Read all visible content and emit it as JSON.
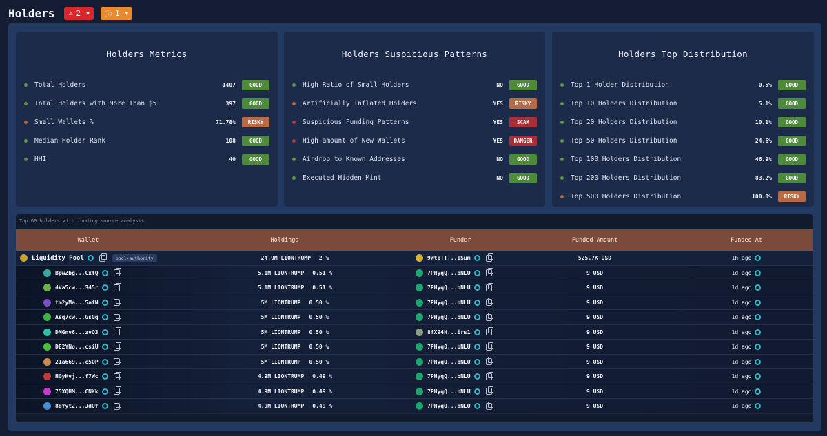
{
  "header": {
    "title": "Holders",
    "alerts": [
      {
        "count": "2",
        "icon": "warning-triangle-icon",
        "color": "#d7262c"
      },
      {
        "count": "1",
        "icon": "info-circle-icon",
        "color": "#e98a2f"
      }
    ]
  },
  "cards": [
    {
      "title": "Holders Metrics",
      "rows": [
        {
          "label": "Total Holders",
          "value": "1407",
          "status": "GOOD"
        },
        {
          "label": "Total Holders with More Than $5",
          "value": "397",
          "status": "GOOD"
        },
        {
          "label": "Small Wallets %",
          "value": "71.78%",
          "status": "RISKY"
        },
        {
          "label": "Median Holder Rank",
          "value": "108",
          "status": "GOOD"
        },
        {
          "label": "HHI",
          "value": "40",
          "status": "GOOD"
        }
      ]
    },
    {
      "title": "Holders Suspicious Patterns",
      "rows": [
        {
          "label": "High Ratio of Small Holders",
          "value": "NO",
          "status": "GOOD"
        },
        {
          "label": "Artificially Inflated Holders",
          "value": "YES",
          "status": "RISKY"
        },
        {
          "label": "Suspicious Funding Patterns",
          "value": "YES",
          "status": "SCAM"
        },
        {
          "label": "High amount of New Wallets",
          "value": "YES",
          "status": "DANGER"
        },
        {
          "label": "Airdrop to Known Addresses",
          "value": "NO",
          "status": "GOOD"
        },
        {
          "label": "Executed Hidden Mint",
          "value": "NO",
          "status": "GOOD"
        }
      ]
    },
    {
      "title": "Holders Top Distribution",
      "rows": [
        {
          "label": "Top 1 Holder Distribution",
          "value": "0.5%",
          "status": "GOOD"
        },
        {
          "label": "Top 10 Holders Distribution",
          "value": "5.1%",
          "status": "GOOD"
        },
        {
          "label": "Top 20 Holders Distribution",
          "value": "10.1%",
          "status": "GOOD"
        },
        {
          "label": "Top 50 Holders Distribution",
          "value": "24.6%",
          "status": "GOOD"
        },
        {
          "label": "Top 100 Holders Distribution",
          "value": "46.9%",
          "status": "GOOD"
        },
        {
          "label": "Top 200 Holders Distribution",
          "value": "83.2%",
          "status": "GOOD"
        },
        {
          "label": "Top 500 Holders Distribution",
          "value": "100.0%",
          "status": "RISKY"
        }
      ]
    }
  ],
  "table": {
    "caption": "Top 60 holders with funding source analysis",
    "columns": [
      "Wallet",
      "Holdings",
      "Funder",
      "Funded Amount",
      "Funded At"
    ],
    "rows": [
      {
        "wallet": "Liquidity Pool",
        "tag": "pool-authority",
        "holdings": "24.9M LIONTRUMP",
        "pct": "2 %",
        "funder": "9WtpTT...1Sum",
        "amount": "525.7K USD",
        "at": "1h ago",
        "avatar": "#c9a227",
        "funder_avatar": "#d4b23a"
      },
      {
        "wallet": "BpwZbg...CxfQ",
        "tag": "",
        "holdings": "5.1M LIONTRUMP",
        "pct": "0.51 %",
        "funder": "7PHyqQ...bNLU",
        "amount": "9 USD",
        "at": "1d ago",
        "avatar": "#3aa8a0",
        "funder_avatar": "#1fa56f"
      },
      {
        "wallet": "4Va5cw...345r",
        "tag": "",
        "holdings": "5.1M LIONTRUMP",
        "pct": "0.51 %",
        "funder": "7PHyqQ...bNLU",
        "amount": "9 USD",
        "at": "1d ago",
        "avatar": "#6fb24a",
        "funder_avatar": "#1fa56f"
      },
      {
        "wallet": "tm2yMa...5afN",
        "tag": "",
        "holdings": "5M LIONTRUMP",
        "pct": "0.50 %",
        "funder": "7PHyqQ...bNLU",
        "amount": "9 USD",
        "at": "1d ago",
        "avatar": "#7a4fc4",
        "funder_avatar": "#1fa56f"
      },
      {
        "wallet": "Asq7cw...GsGq",
        "tag": "",
        "holdings": "5M LIONTRUMP",
        "pct": "0.50 %",
        "funder": "7PHyqQ...bNLU",
        "amount": "9 USD",
        "at": "1d ago",
        "avatar": "#3fb34a",
        "funder_avatar": "#1fa56f"
      },
      {
        "wallet": "DMGnv6...zvQ3",
        "tag": "",
        "holdings": "5M LIONTRUMP",
        "pct": "0.50 %",
        "funder": "8fX94H...irs1",
        "amount": "9 USD",
        "at": "1d ago",
        "avatar": "#2fc2a8",
        "funder_avatar": "#8a9f7c"
      },
      {
        "wallet": "DE2YNo...csiU",
        "tag": "",
        "holdings": "5M LIONTRUMP",
        "pct": "0.50 %",
        "funder": "7PHyqQ...bNLU",
        "amount": "9 USD",
        "at": "1d ago",
        "avatar": "#4bbf3f",
        "funder_avatar": "#1fa56f"
      },
      {
        "wallet": "21a669...c5QP",
        "tag": "",
        "holdings": "5M LIONTRUMP",
        "pct": "0.50 %",
        "funder": "7PHyqQ...bNLU",
        "amount": "9 USD",
        "at": "1d ago",
        "avatar": "#c98a4f",
        "funder_avatar": "#1fa56f"
      },
      {
        "wallet": "HGyHvj...f7Wc",
        "tag": "",
        "holdings": "4.9M LIONTRUMP",
        "pct": "0.49 %",
        "funder": "7PHyqQ...bNLU",
        "amount": "9 USD",
        "at": "1d ago",
        "avatar": "#c43a3a",
        "funder_avatar": "#1fa56f"
      },
      {
        "wallet": "75XQHM...CNKk",
        "tag": "",
        "holdings": "4.9M LIONTRUMP",
        "pct": "0.49 %",
        "funder": "7PHyqQ...bNLU",
        "amount": "9 USD",
        "at": "1d ago",
        "avatar": "#c63ad0",
        "funder_avatar": "#1fa56f"
      },
      {
        "wallet": "8qYyt2...JdQf",
        "tag": "",
        "holdings": "4.9M LIONTRUMP",
        "pct": "0.49 %",
        "funder": "7PHyqQ...bNLU",
        "amount": "9 USD",
        "at": "1d ago",
        "avatar": "#4a8fd0",
        "funder_avatar": "#1fa56f"
      }
    ]
  }
}
